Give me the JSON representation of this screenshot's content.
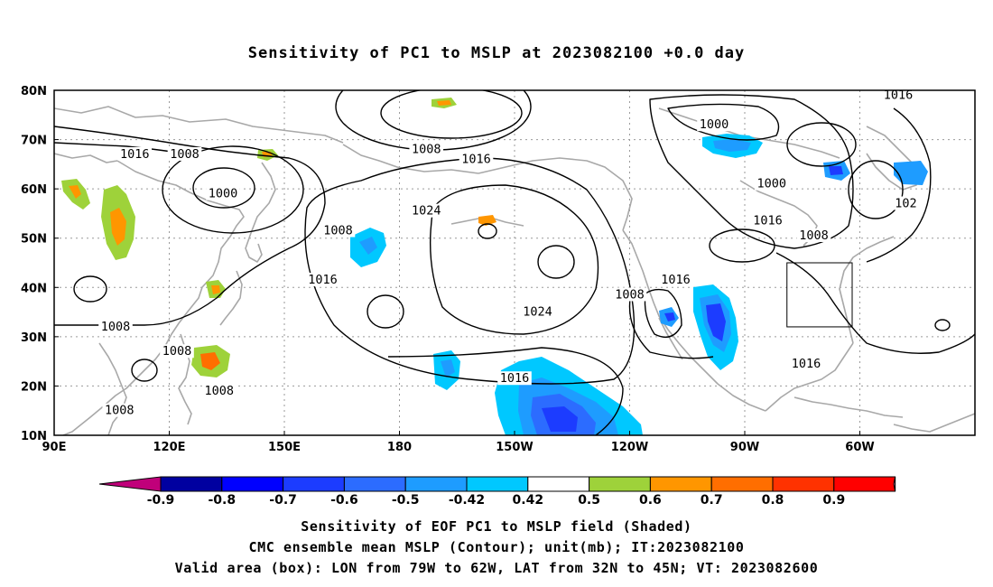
{
  "title": "Sensitivity of PC1 to MSLP at 2023082100 +0.0 day",
  "map": {
    "lon_labels": [
      "90E",
      "120E",
      "150E",
      "180",
      "150W",
      "120W",
      "90W",
      "60W"
    ],
    "lat_labels": [
      "80N",
      "70N",
      "60N",
      "50N",
      "40N",
      "30N",
      "20N",
      "10N"
    ],
    "contour_labels": [
      {
        "text": "1016",
        "lon": 111,
        "lat": 67
      },
      {
        "text": "1008",
        "lon": 124,
        "lat": 67
      },
      {
        "text": "1000",
        "lon": 134,
        "lat": 59
      },
      {
        "text": "1008",
        "lon": 164,
        "lat": 51.5
      },
      {
        "text": "1016",
        "lon": 160,
        "lat": 41.5
      },
      {
        "text": "1008",
        "lon": 106,
        "lat": 32
      },
      {
        "text": "1008",
        "lon": 122,
        "lat": 27
      },
      {
        "text": "1008",
        "lon": 133,
        "lat": 19
      },
      {
        "text": "1008",
        "lon": 107,
        "lat": 15
      },
      {
        "text": "1008",
        "lon": 187,
        "lat": 68
      },
      {
        "text": "1016",
        "lon": -160,
        "lat": 66
      },
      {
        "text": "1024",
        "lon": -173,
        "lat": 55.5
      },
      {
        "text": "1024",
        "lon": -144,
        "lat": 35
      },
      {
        "text": "1016",
        "lon": -150,
        "lat": 21.5
      },
      {
        "text": "1008",
        "lon": -120,
        "lat": 38.5
      },
      {
        "text": "1016",
        "lon": -108,
        "lat": 41.5
      },
      {
        "text": "1000",
        "lon": -98,
        "lat": 73
      },
      {
        "text": "1000",
        "lon": -83,
        "lat": 61
      },
      {
        "text": "1016",
        "lon": -84,
        "lat": 53.5
      },
      {
        "text": "1008",
        "lon": -72,
        "lat": 50.5
      },
      {
        "text": "1016",
        "lon": -74,
        "lat": 24.5
      },
      {
        "text": "1016",
        "lon": -50,
        "lat": 79
      },
      {
        "text": "102",
        "lon": -48,
        "lat": 57
      }
    ],
    "valid_box": {
      "lon_west": -79,
      "lon_east": -62,
      "lat_south": 32,
      "lat_north": 45
    }
  },
  "colorbar": {
    "tick_labels": [
      "-0.9",
      "-0.8",
      "-0.7",
      "-0.6",
      "-0.5",
      "-0.42",
      "0.42",
      "0.5",
      "0.6",
      "0.7",
      "0.8",
      "0.9"
    ],
    "colors": [
      "#c0007a",
      "#0000a0",
      "#0000ff",
      "#1c3cff",
      "#2c6cff",
      "#1e9cff",
      "#00c8ff",
      "#ffffff",
      "#9ed23a",
      "#ff9600",
      "#ff6e00",
      "#ff3200",
      "#ff0000",
      "#ff96c8"
    ]
  },
  "captions": {
    "line1": "Sensitivity of EOF PC1 to MSLP field (Shaded)",
    "line2": "CMC ensemble mean MSLP (Contour); unit(mb); IT:2023082100",
    "line3": "Valid area (box): LON from 79W to 62W, LAT from 32N to 45N; VT: 2023082600"
  }
}
